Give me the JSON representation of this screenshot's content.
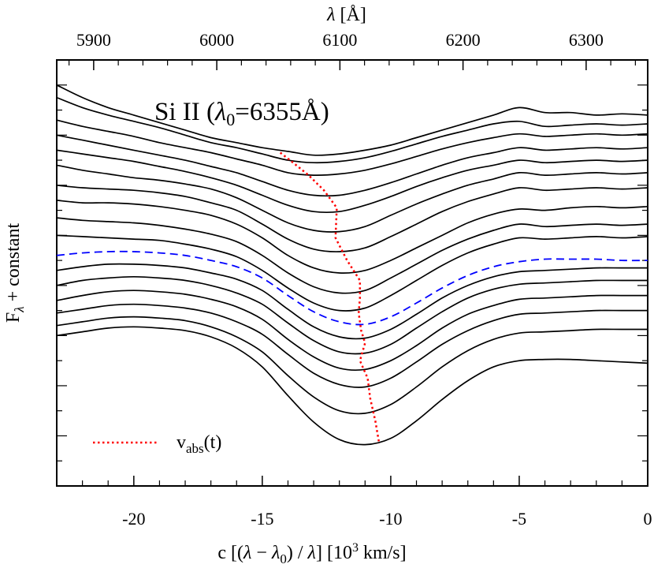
{
  "chart_data": {
    "type": "line",
    "title": "",
    "annotation": "Si II (λ0=6355Å)",
    "annotation_parts": {
      "prefix": "Si II (",
      "lambda": "λ",
      "sub": "0",
      "suffix": "=6355Å)"
    },
    "xlabel": "c [(λ − λ0) / λ]   [10³ km/s]",
    "xlabel_parts": {
      "a": "c [(",
      "lam1": "λ",
      "mid": " − ",
      "lam2": "λ",
      "sub": "0",
      "b": ") / ",
      "lam3": "λ",
      "c": "]   [10",
      "sup": "3",
      "d": " km/s]"
    },
    "ylabel": "Fλ + constant",
    "ylabel_parts": {
      "main": "F",
      "sub": "λ",
      "rest": " + constant"
    },
    "top_xlabel": "λ [Å]",
    "top_xlabel_parts": {
      "lam": "λ",
      "rest": " [Å]"
    },
    "xlim": [
      -23,
      0
    ],
    "top_xlim": [
      5870,
      6350
    ],
    "x_ticks": [
      "-20",
      "-15",
      "-10",
      "-5",
      "0"
    ],
    "x_tick_values": [
      -20,
      -15,
      -10,
      -5,
      0
    ],
    "top_ticks": [
      "5900",
      "6000",
      "6100",
      "6200",
      "6300"
    ],
    "top_tick_values": [
      5900,
      6000,
      6100,
      6200,
      6300
    ],
    "ylim": [
      0,
      17
    ],
    "y_ticks_labeled": false,
    "legend": {
      "label": "vabs(t)",
      "label_parts": {
        "main": "v",
        "sub": "abs",
        "rest": "(t)"
      },
      "color": "#ff0000",
      "style": "dotted",
      "placement": "bottom-left"
    },
    "colors": {
      "spectra": "#000000",
      "highlight": "#0000ff",
      "velocity": "#ff0000"
    },
    "x": [
      -23,
      -22,
      -21,
      -20,
      -19,
      -18,
      -17,
      -16,
      -15,
      -14,
      -13,
      -12,
      -11,
      -10,
      -9,
      -8,
      -7,
      -6,
      -5,
      -4,
      -3,
      -2,
      -1,
      0
    ],
    "series": [
      {
        "style": "solid",
        "y": [
          16.0,
          15.5,
          15.1,
          14.8,
          14.5,
          14.2,
          13.9,
          13.7,
          13.5,
          13.35,
          13.2,
          13.25,
          13.4,
          13.6,
          13.9,
          14.2,
          14.5,
          14.8,
          15.1,
          14.9,
          14.9,
          14.8,
          14.85,
          14.8
        ]
      },
      {
        "style": "solid",
        "y": [
          15.5,
          15.1,
          14.8,
          14.55,
          14.3,
          14.0,
          13.7,
          13.5,
          13.25,
          13.0,
          12.9,
          12.95,
          13.1,
          13.35,
          13.65,
          13.95,
          14.2,
          14.45,
          14.55,
          14.35,
          14.4,
          14.45,
          14.4,
          14.45
        ]
      },
      {
        "style": "solid",
        "y": [
          14.6,
          14.35,
          14.15,
          13.95,
          13.7,
          13.5,
          13.3,
          13.05,
          12.8,
          12.5,
          12.4,
          12.45,
          12.6,
          12.85,
          13.15,
          13.45,
          13.7,
          13.9,
          14.05,
          13.95,
          14.0,
          14.05,
          14.0,
          14.05
        ]
      },
      {
        "style": "solid",
        "y": [
          14.0,
          13.8,
          13.6,
          13.4,
          13.2,
          13.0,
          12.75,
          12.5,
          12.15,
          11.8,
          11.6,
          11.6,
          11.8,
          12.1,
          12.45,
          12.8,
          13.1,
          13.3,
          13.5,
          13.4,
          13.45,
          13.5,
          13.45,
          13.5
        ]
      },
      {
        "style": "solid",
        "y": [
          13.4,
          13.25,
          13.1,
          12.95,
          12.75,
          12.55,
          12.3,
          12.0,
          11.6,
          11.2,
          10.95,
          10.95,
          11.2,
          11.55,
          11.95,
          12.3,
          12.6,
          12.8,
          13.0,
          12.9,
          12.95,
          13.0,
          12.95,
          13.0
        ]
      },
      {
        "style": "solid",
        "y": [
          12.8,
          12.6,
          12.45,
          12.3,
          12.2,
          12.05,
          11.85,
          11.5,
          11.0,
          10.5,
          10.2,
          10.15,
          10.35,
          10.8,
          11.25,
          11.65,
          12.0,
          12.25,
          12.5,
          12.4,
          12.45,
          12.5,
          12.45,
          12.5
        ]
      },
      {
        "style": "solid",
        "y": [
          12.0,
          11.9,
          11.85,
          11.8,
          11.7,
          11.55,
          11.3,
          11.0,
          10.45,
          9.85,
          9.45,
          9.35,
          9.5,
          9.95,
          10.45,
          10.95,
          11.35,
          11.65,
          11.9,
          11.8,
          11.85,
          11.9,
          11.85,
          11.9
        ]
      },
      {
        "style": "solid",
        "y": [
          11.4,
          11.3,
          11.3,
          11.25,
          11.15,
          11.0,
          10.8,
          10.45,
          9.9,
          9.2,
          8.7,
          8.5,
          8.6,
          9.0,
          9.5,
          10.0,
          10.5,
          10.85,
          11.05,
          11.0,
          11.1,
          11.15,
          11.1,
          11.15
        ]
      },
      {
        "style": "solid",
        "y": [
          10.7,
          10.6,
          10.55,
          10.5,
          10.4,
          10.25,
          10.05,
          9.75,
          9.2,
          8.5,
          7.95,
          7.7,
          7.8,
          8.3,
          8.85,
          9.4,
          9.85,
          10.2,
          10.45,
          10.35,
          10.4,
          10.45,
          10.4,
          10.45
        ]
      },
      {
        "style": "solid",
        "y": [
          10.0,
          9.95,
          9.9,
          9.85,
          9.8,
          9.65,
          9.45,
          9.15,
          8.6,
          7.9,
          7.3,
          7.0,
          7.1,
          7.6,
          8.2,
          8.8,
          9.3,
          9.65,
          9.9,
          9.85,
          9.9,
          9.95,
          9.9,
          9.95
        ]
      },
      {
        "style": "dashed",
        "y": [
          9.2,
          9.3,
          9.35,
          9.35,
          9.3,
          9.2,
          9.0,
          8.75,
          8.3,
          7.6,
          6.95,
          6.55,
          6.45,
          6.75,
          7.3,
          7.9,
          8.4,
          8.75,
          8.95,
          9.05,
          9.05,
          9.05,
          9.0,
          9.0
        ]
      },
      {
        "style": "solid",
        "y": [
          8.6,
          8.75,
          8.85,
          8.85,
          8.8,
          8.7,
          8.5,
          8.25,
          7.8,
          7.05,
          6.35,
          5.95,
          5.9,
          6.25,
          6.85,
          7.5,
          8.0,
          8.35,
          8.55,
          8.6,
          8.65,
          8.7,
          8.7,
          8.7
        ]
      },
      {
        "style": "solid",
        "y": [
          8.0,
          8.2,
          8.3,
          8.35,
          8.3,
          8.2,
          8.0,
          7.7,
          7.25,
          6.5,
          5.8,
          5.35,
          5.3,
          5.65,
          6.3,
          6.95,
          7.5,
          7.85,
          8.05,
          8.1,
          8.15,
          8.2,
          8.2,
          8.2
        ]
      },
      {
        "style": "solid",
        "y": [
          7.4,
          7.6,
          7.75,
          7.8,
          7.75,
          7.65,
          7.45,
          7.15,
          6.65,
          5.85,
          5.15,
          4.7,
          4.65,
          5.0,
          5.6,
          6.3,
          6.85,
          7.2,
          7.45,
          7.5,
          7.55,
          7.6,
          7.6,
          7.6
        ]
      },
      {
        "style": "solid",
        "y": [
          6.9,
          7.05,
          7.2,
          7.25,
          7.2,
          7.1,
          6.9,
          6.55,
          6.05,
          5.25,
          4.5,
          4.05,
          3.95,
          4.3,
          4.95,
          5.65,
          6.2,
          6.6,
          6.85,
          6.9,
          6.95,
          7.0,
          7.0,
          7.0
        ]
      },
      {
        "style": "solid",
        "y": [
          6.4,
          6.55,
          6.7,
          6.75,
          6.7,
          6.6,
          6.35,
          5.95,
          5.35,
          4.4,
          3.55,
          3.0,
          2.9,
          3.25,
          3.95,
          4.75,
          5.4,
          5.85,
          6.1,
          6.15,
          6.2,
          6.25,
          6.25,
          6.25
        ]
      },
      {
        "style": "solid",
        "y": [
          6.0,
          6.15,
          6.3,
          6.35,
          6.3,
          6.2,
          5.95,
          5.5,
          4.75,
          3.6,
          2.55,
          1.85,
          1.65,
          1.9,
          2.6,
          3.45,
          4.2,
          4.75,
          5.0,
          5.05,
          5.05,
          5.0,
          4.95,
          4.9
        ]
      }
    ],
    "vabs": {
      "x": [
        -14.3,
        -13.8,
        -13.2,
        -12.6,
        -12.1,
        -12.15,
        -11.7,
        -11.2,
        -11.2,
        -11.25,
        -11.15,
        -11.0,
        -11.2,
        -10.9,
        -10.8,
        -10.6,
        -10.45
      ],
      "y": [
        13.3,
        12.9,
        12.4,
        11.8,
        11.1,
        9.9,
        9.0,
        8.2,
        7.5,
        6.9,
        6.2,
        5.7,
        5.0,
        4.3,
        3.5,
        2.6,
        1.7
      ]
    }
  }
}
